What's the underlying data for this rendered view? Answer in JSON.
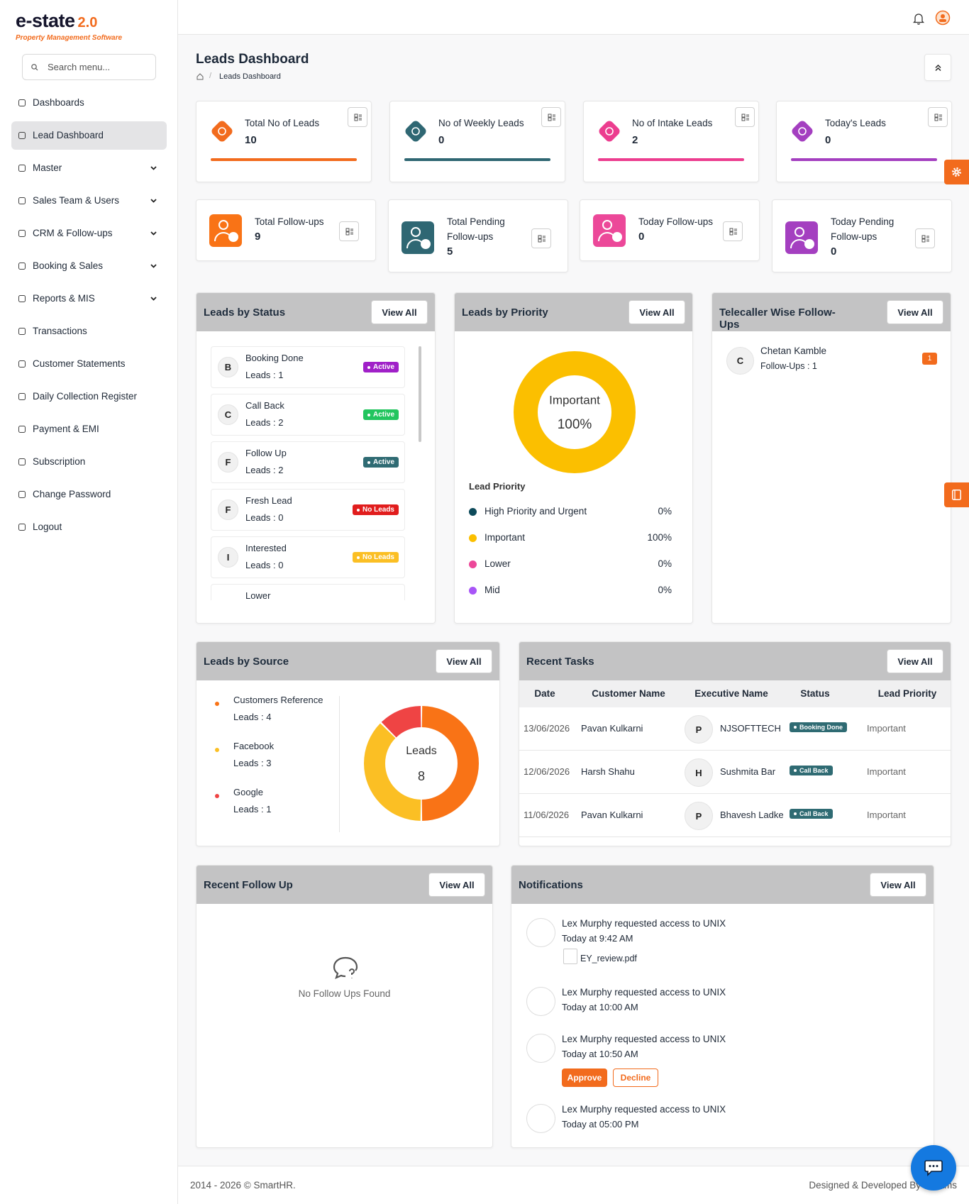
{
  "sidebar": {
    "logo": "e-state",
    "logo_version": "2.0",
    "tagline": "Property Management Software",
    "search_placeholder": "Search menu...",
    "active_index": 1,
    "menu": [
      {
        "label": "Dashboards",
        "submenu": false
      },
      {
        "label": "Lead Dashboard",
        "submenu": false
      },
      {
        "label": "Master",
        "submenu": true
      },
      {
        "label": "Sales Team & Users",
        "submenu": true
      },
      {
        "label": "CRM & Follow-ups",
        "submenu": true
      },
      {
        "label": "Booking & Sales",
        "submenu": true
      },
      {
        "label": "Reports & MIS",
        "submenu": true
      },
      {
        "label": "Transactions",
        "submenu": false
      },
      {
        "label": "Customer Statements",
        "submenu": false
      },
      {
        "label": "Daily Collection Register",
        "submenu": false
      },
      {
        "label": "Payment & EMI",
        "submenu": false
      },
      {
        "label": "Subscription",
        "submenu": false
      },
      {
        "label": "Change Password",
        "submenu": false
      },
      {
        "label": "Logout",
        "submenu": false
      }
    ]
  },
  "header": {
    "title": "Leads Dashboard",
    "breadcrumb": "Leads Dashboard"
  },
  "kpis": [
    {
      "label": "Total No of Leads",
      "value": 10,
      "color": "#f26b1d"
    },
    {
      "label": "No of Weekly Leads",
      "value": 0,
      "color": "#2f6773"
    },
    {
      "label": "No of Intake Leads",
      "value": 2,
      "color": "#ec3d8f"
    },
    {
      "label": "Today's Leads",
      "value": 0,
      "color": "#a43fc0"
    }
  ],
  "followups": [
    {
      "label": "Total Follow-ups",
      "value": 9,
      "color": "#f97316"
    },
    {
      "label": "Total Pending Follow-ups",
      "value": 5,
      "color": "#2f6773"
    },
    {
      "label": "Today Follow-ups",
      "value": 0,
      "color": "#ec4899"
    },
    {
      "label": "Today Pending Follow-ups",
      "value": 0,
      "color": "#a43fc0"
    }
  ],
  "status": {
    "title": "Leads by Status",
    "button": "View All",
    "items": [
      {
        "initial": "B",
        "name": "Booking Done",
        "leads": "Leads : 1",
        "badge": "Active",
        "badge_color": "#a020c8"
      },
      {
        "initial": "C",
        "name": "Call Back",
        "leads": "Leads : 2",
        "badge": "Active",
        "badge_color": "#22c55e"
      },
      {
        "initial": "F",
        "name": "Follow Up",
        "leads": "Leads : 2",
        "badge": "Active",
        "badge_color": "#2f6b73"
      },
      {
        "initial": "F",
        "name": "Fresh Lead",
        "leads": "Leads : 0",
        "badge": "No Leads",
        "badge_color": "#e11d1d"
      },
      {
        "initial": "I",
        "name": "Interested",
        "leads": "Leads : 0",
        "badge": "No Leads",
        "badge_color": "#fbbf24"
      },
      {
        "name": "Lower",
        "badge_color": "#1f6fd6"
      }
    ]
  },
  "priority": {
    "title": "Leads by Priority",
    "button": "View All",
    "center_label": "Important",
    "center_value_label": "100%",
    "legend_title": "Lead Priority",
    "items": [
      {
        "name": "High Priority and Urgent",
        "value": 0,
        "value_label": "0%",
        "color": "#0d4a5a"
      },
      {
        "name": "Important",
        "value": 100,
        "value_label": "100%",
        "color": "#fbbf00"
      },
      {
        "name": "Lower",
        "value": 0,
        "value_label": "0%",
        "color": "#ec4899"
      },
      {
        "name": "Mid",
        "value": 0,
        "value_label": "0%",
        "color": "#a855f7"
      }
    ]
  },
  "telecaller": {
    "title": "Telecaller Wise Follow-Ups",
    "button": "View All",
    "items": [
      {
        "initial": "C",
        "name": "Chetan Kamble",
        "followups": "Follow-Ups : 1",
        "count": 1
      }
    ]
  },
  "source": {
    "title": "Leads by Source",
    "button": "View All",
    "center_label": "Leads",
    "center_value": 8,
    "items": [
      {
        "name": "Customers Reference",
        "leads": "Leads : 4",
        "value": 4,
        "color": "#f97316"
      },
      {
        "name": "Facebook",
        "leads": "Leads : 3",
        "value": 3,
        "color": "#fbbf24"
      },
      {
        "name": "Google",
        "leads": "Leads : 1",
        "value": 1,
        "color": "#ef4444"
      }
    ]
  },
  "tasks": {
    "title": "Recent Tasks",
    "button": "View All",
    "columns": [
      "Date",
      "Customer Name",
      "Executive Name",
      "Status",
      "Lead Priority"
    ],
    "rows": [
      {
        "date": "13/06/2026",
        "customer": "Pavan Kulkarni",
        "initial": "P",
        "executive": "NJSOFTTECH",
        "status": "Booking Done",
        "priority": "Important"
      },
      {
        "date": "12/06/2026",
        "customer": "Harsh Shahu",
        "initial": "H",
        "executive": "Sushmita Bar",
        "status": "Call Back",
        "priority": "Important"
      },
      {
        "date": "11/06/2026",
        "customer": "Pavan Kulkarni",
        "initial": "P",
        "executive": "Bhavesh Ladke",
        "status": "Call Back",
        "priority": "Important"
      }
    ]
  },
  "recent_follow_up": {
    "title": "Recent Follow Up",
    "button": "View All",
    "empty": "No Follow Ups Found"
  },
  "notifications": {
    "title": "Notifications",
    "button": "View All",
    "items": [
      {
        "text": "Lex Murphy requested access to UNIX",
        "time": "Today at 9:42 AM",
        "attachment": "EY_review.pdf"
      },
      {
        "text": "Lex Murphy requested access to UNIX",
        "time": "Today at 10:00 AM"
      },
      {
        "text": "Lex Murphy requested access to UNIX",
        "time": "Today at 10:50 AM",
        "actions": [
          "Approve",
          "Decline"
        ]
      },
      {
        "text": "Lex Murphy requested access to UNIX",
        "time": "Today at 05:00 PM"
      }
    ]
  },
  "footer": {
    "copyright": "2014 - 2026 © SmartHR.",
    "credit": "Designed & Developed By Dreams"
  }
}
